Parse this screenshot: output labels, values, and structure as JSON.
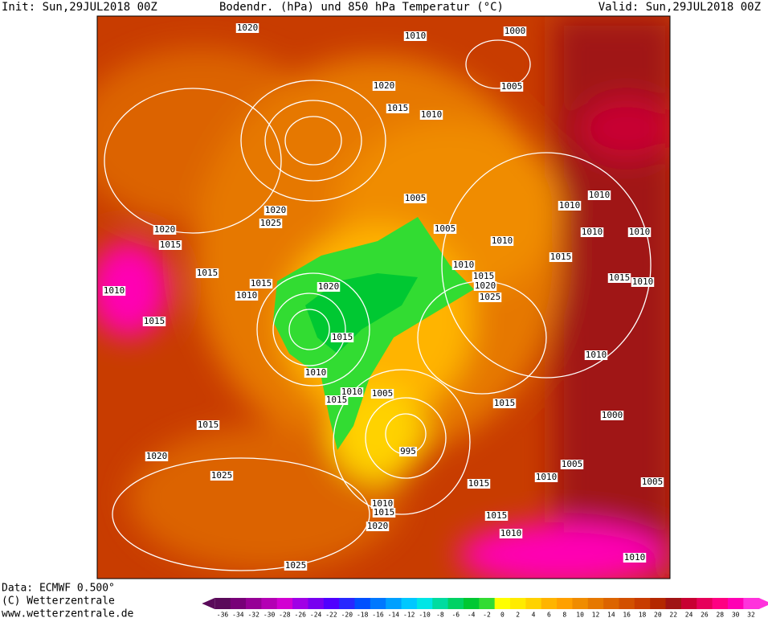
{
  "header": {
    "init": "Init: Sun,29JUL2018 00Z",
    "title": "Bodendr. (hPa) und 850 hPa Temperatur (°C)",
    "valid": "Valid: Sun,29JUL2018 00Z"
  },
  "footer": {
    "data": "Data: ECMWF  0.500°",
    "copyright": "(C) Wetterzentrale",
    "url": "www.wetterzentrale.de"
  },
  "map": {
    "isobar_labels": [
      "1020",
      "1010",
      "1000",
      "1005",
      "1020",
      "1015",
      "1010",
      "1005",
      "1005",
      "1010",
      "1020",
      "1025",
      "1020",
      "1015",
      "1015",
      "1010",
      "1015",
      "1015",
      "1010",
      "1020",
      "1015",
      "1010",
      "1010",
      "1005",
      "1015",
      "995",
      "1015",
      "1015",
      "1020",
      "1025",
      "1010",
      "1015",
      "1020",
      "1025",
      "1015",
      "1010",
      "1010",
      "1005",
      "1010",
      "1015",
      "1000",
      "1010",
      "1010",
      "1010",
      "1010",
      "1010",
      "1015",
      "1010",
      "1015",
      "1020",
      "1025",
      "1015",
      "1010",
      "1005"
    ]
  },
  "colorbar": {
    "ticks": [
      -36,
      -34,
      -32,
      -30,
      -28,
      -26,
      -24,
      -22,
      -20,
      -18,
      -16,
      -14,
      -12,
      -10,
      -8,
      -6,
      -4,
      -2,
      0,
      2,
      4,
      6,
      8,
      10,
      12,
      14,
      16,
      18,
      20,
      22,
      24,
      26,
      28,
      30,
      32
    ],
    "colors": [
      "#5a0a5a",
      "#780078",
      "#960096",
      "#b400b4",
      "#d200d2",
      "#a000e6",
      "#7800f0",
      "#5000ff",
      "#2828ff",
      "#0050ff",
      "#0078ff",
      "#00a0ff",
      "#00c8ff",
      "#00e6e6",
      "#00dca0",
      "#00d264",
      "#00c832",
      "#32dc32",
      "#ffff00",
      "#ffeb00",
      "#ffd200",
      "#ffb400",
      "#ffa000",
      "#f08c00",
      "#e67800",
      "#dc6400",
      "#d25000",
      "#c83c00",
      "#b42800",
      "#a01414",
      "#c80032",
      "#e6005a",
      "#ff0082",
      "#ff00b4",
      "#ff32dc"
    ]
  }
}
